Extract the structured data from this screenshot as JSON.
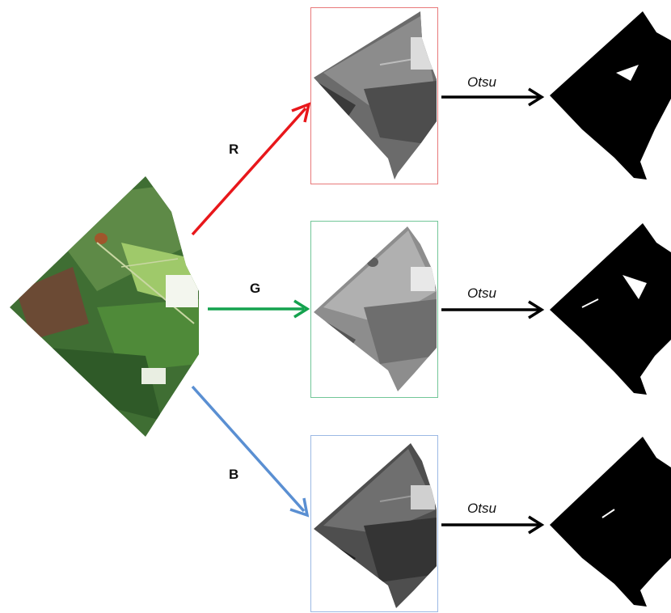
{
  "diagram": {
    "source_image": "color leaf image",
    "branches": [
      {
        "channel": "R",
        "arrow_color": "#e8171b",
        "frame_color": "#e8797a",
        "method": "Otsu"
      },
      {
        "channel": "G",
        "arrow_color": "#14a24e",
        "frame_color": "#72c698",
        "method": "Otsu"
      },
      {
        "channel": "B",
        "arrow_color": "#5a8fd2",
        "frame_color": "#9cb9e4",
        "method": "Otsu"
      }
    ]
  }
}
